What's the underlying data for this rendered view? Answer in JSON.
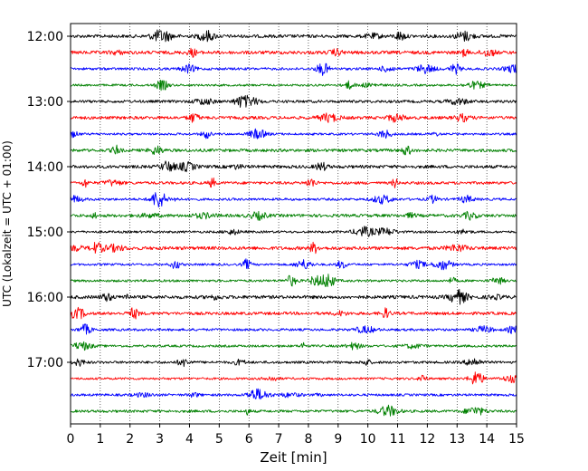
{
  "chart_data": {
    "type": "line",
    "title": "",
    "xlabel": "Zeit  [min]",
    "ylabel": "UTC (Lokalzeit = UTC + 01:00)",
    "xlim": [
      0,
      15
    ],
    "x_ticks": [
      "0",
      "1",
      "2",
      "3",
      "4",
      "5",
      "6",
      "7",
      "8",
      "9",
      "10",
      "11",
      "12",
      "13",
      "14",
      "15"
    ],
    "y_tick_labels": [
      "12:00",
      "13:00",
      "14:00",
      "15:00",
      "16:00",
      "17:00"
    ],
    "grid": "vertical-dotted",
    "trace_colors": [
      "#000000",
      "#ff0000",
      "#0000ff",
      "#008000"
    ],
    "traces": [
      {
        "start": "12:00",
        "color": "#000000"
      },
      {
        "start": "12:15",
        "color": "#ff0000"
      },
      {
        "start": "12:30",
        "color": "#0000ff"
      },
      {
        "start": "12:45",
        "color": "#008000"
      },
      {
        "start": "13:00",
        "color": "#000000"
      },
      {
        "start": "13:15",
        "color": "#ff0000"
      },
      {
        "start": "13:30",
        "color": "#0000ff"
      },
      {
        "start": "13:45",
        "color": "#008000"
      },
      {
        "start": "14:00",
        "color": "#000000"
      },
      {
        "start": "14:15",
        "color": "#ff0000"
      },
      {
        "start": "14:30",
        "color": "#0000ff"
      },
      {
        "start": "14:45",
        "color": "#008000"
      },
      {
        "start": "15:00",
        "color": "#000000"
      },
      {
        "start": "15:15",
        "color": "#ff0000"
      },
      {
        "start": "15:30",
        "color": "#0000ff"
      },
      {
        "start": "15:45",
        "color": "#008000"
      },
      {
        "start": "16:00",
        "color": "#000000"
      },
      {
        "start": "16:15",
        "color": "#ff0000"
      },
      {
        "start": "16:30",
        "color": "#0000ff"
      },
      {
        "start": "16:45",
        "color": "#008000"
      },
      {
        "start": "17:00",
        "color": "#000000"
      },
      {
        "start": "17:15",
        "color": "#ff0000"
      },
      {
        "start": "17:30",
        "color": "#0000ff"
      },
      {
        "start": "17:45",
        "color": "#008000"
      }
    ]
  }
}
